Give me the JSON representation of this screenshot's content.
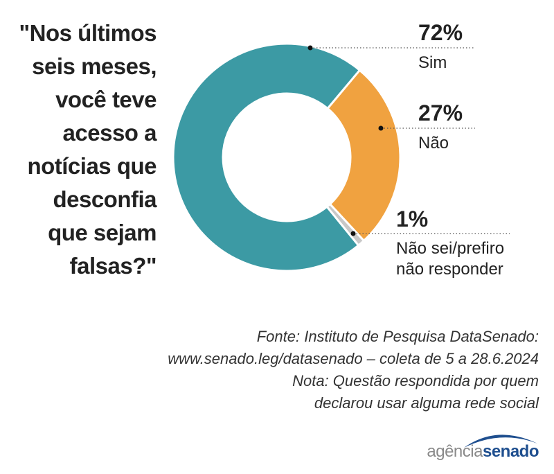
{
  "question_lines": [
    "\"Nos últimos",
    "seis meses,",
    "você teve",
    "acesso a",
    "notícias que",
    "desconfia",
    "que sejam",
    "falsas?\""
  ],
  "chart_data": {
    "type": "pie",
    "style": "donut",
    "title": "\"Nos últimos seis meses, você teve acesso a notícias que desconfia que sejam falsas?\"",
    "slices": [
      {
        "pct_label": "72%",
        "label_lines": [
          "Sim"
        ],
        "value": 72,
        "color": "#3c9aa4"
      },
      {
        "pct_label": "27%",
        "label_lines": [
          "Não"
        ],
        "value": 27,
        "color": "#f0a240"
      },
      {
        "pct_label": "1%",
        "label_lines": [
          "Não sei/prefiro",
          "não responder"
        ],
        "value": 1,
        "color": "#c8c8c8"
      }
    ],
    "legend": "right, leader lines with dotted rules"
  },
  "footer_lines": [
    "Fonte: Instituto de Pesquisa DataSenado:",
    "www.senado.leg/datasenado – coleta de 5 a 28.6.2024",
    "Nota: Questão respondida por quem",
    "declarou usar alguma rede social"
  ],
  "logo": {
    "part_a": "agência",
    "part_b": "senado",
    "swoosh_color": "#1f4f8f"
  }
}
